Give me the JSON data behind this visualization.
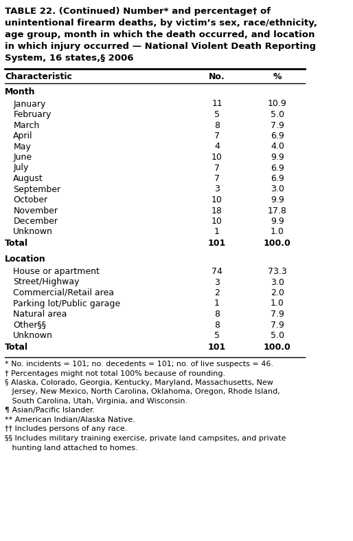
{
  "title_line1": "TABLE 22. (Continued) Number* and percentage† of",
  "title_line2": "unintentional firearm deaths, by victim’s sex, race/ethnicity,",
  "title_line3": "age group, month in which the death occurred, and location",
  "title_line4": "in which injury occurred — National Violent Death Reporting",
  "title_line5": "System, 16 states,§ 2006",
  "col_headers": [
    "Characteristic",
    "No.",
    "%"
  ],
  "sections": [
    {
      "section_name": "Month",
      "rows": [
        {
          "label": "January",
          "no": "11",
          "pct": "10.9"
        },
        {
          "label": "February",
          "no": "5",
          "pct": "5.0"
        },
        {
          "label": "March",
          "no": "8",
          "pct": "7.9"
        },
        {
          "label": "April",
          "no": "7",
          "pct": "6.9"
        },
        {
          "label": "May",
          "no": "4",
          "pct": "4.0"
        },
        {
          "label": "June",
          "no": "10",
          "pct": "9.9"
        },
        {
          "label": "July",
          "no": "7",
          "pct": "6.9"
        },
        {
          "label": "August",
          "no": "7",
          "pct": "6.9"
        },
        {
          "label": "September",
          "no": "3",
          "pct": "3.0"
        },
        {
          "label": "October",
          "no": "10",
          "pct": "9.9"
        },
        {
          "label": "November",
          "no": "18",
          "pct": "17.8"
        },
        {
          "label": "December",
          "no": "10",
          "pct": "9.9"
        },
        {
          "label": "Unknown",
          "no": "1",
          "pct": "1.0"
        }
      ],
      "total": {
        "label": "Total",
        "no": "101",
        "pct": "100.0"
      }
    },
    {
      "section_name": "Location",
      "rows": [
        {
          "label": "House or apartment",
          "no": "74",
          "pct": "73.3"
        },
        {
          "label": "Street/Highway",
          "no": "3",
          "pct": "3.0"
        },
        {
          "label": "Commercial/Retail area",
          "no": "2",
          "pct": "2.0"
        },
        {
          "label": "Parking lot/Public garage",
          "no": "1",
          "pct": "1.0"
        },
        {
          "label": "Natural area",
          "no": "8",
          "pct": "7.9"
        },
        {
          "label": "Other§§",
          "no": "8",
          "pct": "7.9"
        },
        {
          "label": "Unknown",
          "no": "5",
          "pct": "5.0"
        }
      ],
      "total": {
        "label": "Total",
        "no": "101",
        "pct": "100.0"
      }
    }
  ],
  "footnotes": [
    "* No. incidents = 101; no. decedents = 101; no. of live suspects = 46.",
    "† Percentages might not total 100% because of rounding.",
    "§ Alaska, Colorado, Georgia, Kentucky, Maryland, Massachusetts, New",
    "   Jersey, New Mexico, North Carolina, Oklahoma, Oregon, Rhode Island,",
    "   South Carolina, Utah, Virginia, and Wisconsin.",
    "¶ Asian/Pacific Islander.",
    "** American Indian/Alaska Native.",
    "†† Includes persons of any race.",
    "§§ Includes military training exercise, private land campsites, and private",
    "   hunting land attached to homes."
  ],
  "bg_color": "#ffffff",
  "text_color": "#000000",
  "font_size_title": 9.5,
  "font_size_table": 9.0,
  "font_size_footnote": 8.0
}
